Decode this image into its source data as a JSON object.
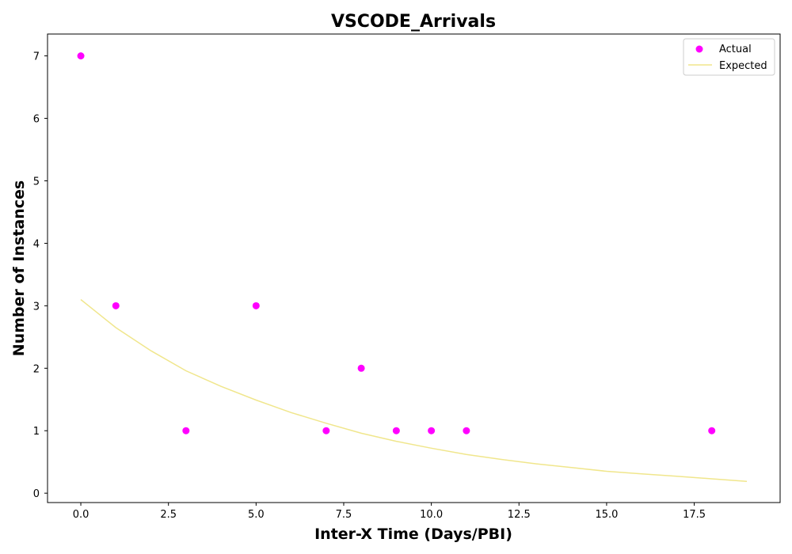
{
  "chart_data": {
    "type": "scatter",
    "title": "VSCODE_Arrivals",
    "xlabel": "Inter-X Time (Days/PBI)",
    "ylabel": "Number of Instances",
    "xlim": [
      -0.95,
      19.95
    ],
    "ylim": [
      -0.15,
      7.35
    ],
    "xticks": [
      0.0,
      2.5,
      5.0,
      7.5,
      10.0,
      12.5,
      15.0,
      17.5
    ],
    "xtick_labels": [
      "0.0",
      "2.5",
      "5.0",
      "7.5",
      "10.0",
      "12.5",
      "15.0",
      "17.5"
    ],
    "yticks": [
      0,
      1,
      2,
      3,
      4,
      5,
      6,
      7
    ],
    "ytick_labels": [
      "0",
      "1",
      "2",
      "3",
      "4",
      "5",
      "6",
      "7"
    ],
    "grid": false,
    "legend_position": "top-right",
    "series": [
      {
        "name": "Actual",
        "kind": "scatter",
        "color": "#ff00ff",
        "x": [
          0,
          1,
          3,
          5,
          7,
          8,
          9,
          10,
          11,
          18
        ],
        "y": [
          7,
          3,
          1,
          3,
          1,
          2,
          1,
          1,
          1,
          1
        ]
      },
      {
        "name": "Expected",
        "kind": "line",
        "color": "#f0e68c",
        "x": [
          0,
          1,
          2,
          3,
          4,
          5,
          6,
          7,
          8,
          9,
          10,
          11,
          12,
          13,
          14,
          15,
          16,
          17,
          18,
          19
        ],
        "y": [
          3.1,
          2.65,
          2.28,
          1.96,
          1.71,
          1.49,
          1.29,
          1.12,
          0.96,
          0.83,
          0.72,
          0.62,
          0.54,
          0.47,
          0.41,
          0.35,
          0.31,
          0.27,
          0.23,
          0.19
        ]
      }
    ]
  }
}
